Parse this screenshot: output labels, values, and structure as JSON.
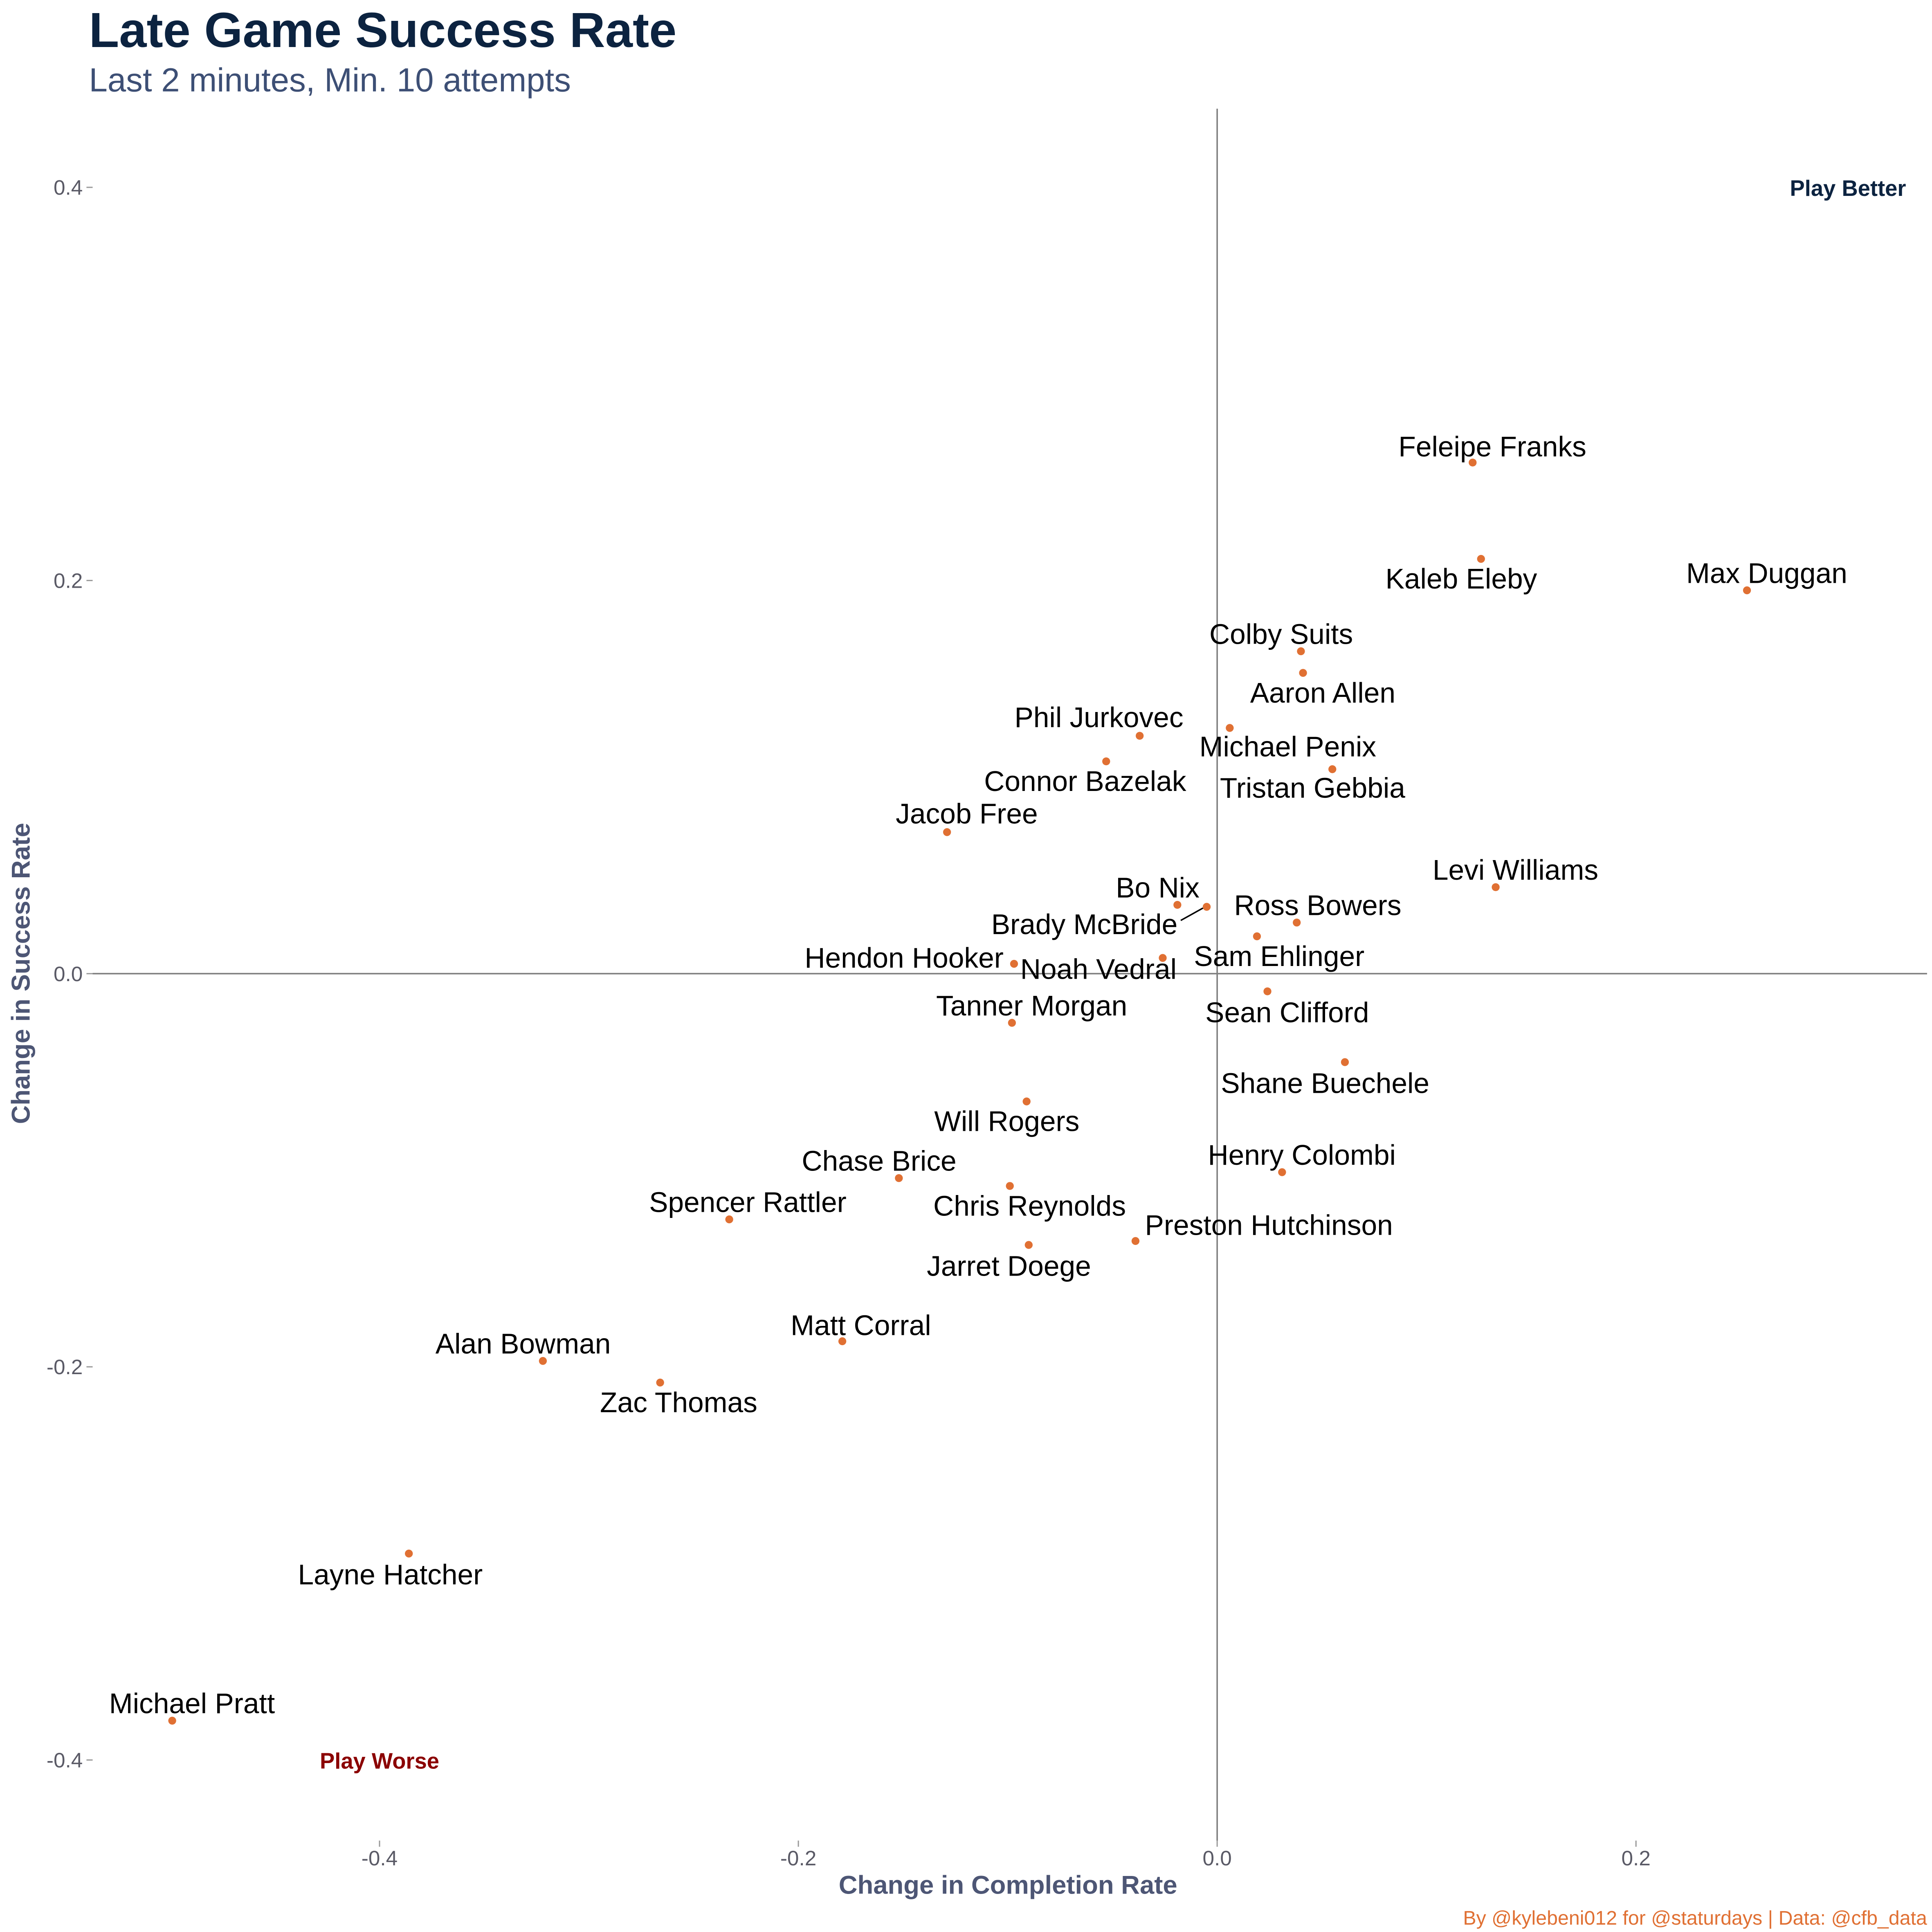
{
  "chart_data": {
    "type": "scatter",
    "title": "Late Game Success Rate",
    "subtitle": "Last 2 minutes, Min. 10 attempts",
    "xlabel": "Change in Completion Rate",
    "ylabel": "Change in Success Rate",
    "xlim": [
      -0.537,
      0.339
    ],
    "ylim": [
      -0.441,
      0.44
    ],
    "xticks": [
      -0.4,
      -0.2,
      0.0,
      0.2
    ],
    "xtick_labels": [
      "-0.4",
      "-0.2",
      "0.0",
      "0.2"
    ],
    "yticks": [
      -0.4,
      -0.2,
      0.0,
      0.2,
      0.4
    ],
    "ytick_labels": [
      "-0.4",
      "-0.2",
      "0.0",
      "0.2",
      "0.4"
    ],
    "grid": false,
    "point_color": "#e07033",
    "annotations": [
      {
        "text": "Play Better",
        "x": 0.3,
        "y": 0.4,
        "color": "#0c2340"
      },
      {
        "text": "Play Worse",
        "x": -0.4,
        "y": -0.4,
        "color": "#8b0000"
      }
    ],
    "caption": "By @kylebeni012 for @staturdays | Data: @cfb_data",
    "points": [
      {
        "name": "Feleipe Franks",
        "x": 0.122,
        "y": 0.26
      },
      {
        "name": "Kaleb Eleby",
        "x": 0.126,
        "y": 0.211
      },
      {
        "name": "Max Duggan",
        "x": 0.253,
        "y": 0.195
      },
      {
        "name": "Colby Suits",
        "x": 0.04,
        "y": 0.164
      },
      {
        "name": "Aaron Allen",
        "x": 0.041,
        "y": 0.153
      },
      {
        "name": "Michael Penix",
        "x": 0.006,
        "y": 0.125
      },
      {
        "name": "Phil Jurkovec",
        "x": -0.037,
        "y": 0.121
      },
      {
        "name": "Connor Bazelak",
        "x": -0.053,
        "y": 0.108
      },
      {
        "name": "Tristan Gebbia",
        "x": 0.055,
        "y": 0.104
      },
      {
        "name": "Jacob Free",
        "x": -0.129,
        "y": 0.072
      },
      {
        "name": "Levi Williams",
        "x": 0.133,
        "y": 0.044
      },
      {
        "name": "Bo Nix",
        "x": -0.019,
        "y": 0.035
      },
      {
        "name": "Brady McBride",
        "x": -0.005,
        "y": 0.034
      },
      {
        "name": "Ross Bowers",
        "x": 0.038,
        "y": 0.026
      },
      {
        "name": "Sam Ehlinger",
        "x": 0.019,
        "y": 0.019
      },
      {
        "name": "Hendon Hooker",
        "x": -0.097,
        "y": 0.005
      },
      {
        "name": "Noah Vedral",
        "x": -0.026,
        "y": 0.008
      },
      {
        "name": "Sean Clifford",
        "x": 0.024,
        "y": -0.009
      },
      {
        "name": "Tanner Morgan",
        "x": -0.098,
        "y": -0.025
      },
      {
        "name": "Shane Buechele",
        "x": 0.061,
        "y": -0.045
      },
      {
        "name": "Will Rogers",
        "x": -0.091,
        "y": -0.065
      },
      {
        "name": "Henry Colombi",
        "x": 0.031,
        "y": -0.101
      },
      {
        "name": "Chase Brice",
        "x": -0.152,
        "y": -0.104
      },
      {
        "name": "Chris Reynolds",
        "x": -0.099,
        "y": -0.108
      },
      {
        "name": "Spencer Rattler",
        "x": -0.233,
        "y": -0.125
      },
      {
        "name": "Preston Hutchinson",
        "x": -0.039,
        "y": -0.136
      },
      {
        "name": "Jarret Doege",
        "x": -0.09,
        "y": -0.138
      },
      {
        "name": "Matt Corral",
        "x": -0.179,
        "y": -0.187
      },
      {
        "name": "Alan Bowman",
        "x": -0.322,
        "y": -0.197
      },
      {
        "name": "Zac Thomas",
        "x": -0.266,
        "y": -0.208
      },
      {
        "name": "Layne Hatcher",
        "x": -0.386,
        "y": -0.295
      },
      {
        "name": "Michael Pratt",
        "x": -0.499,
        "y": -0.38
      }
    ]
  }
}
